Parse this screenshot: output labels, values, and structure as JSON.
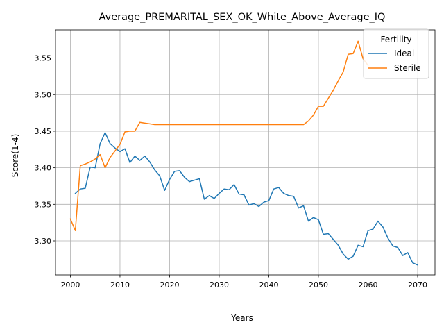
{
  "chart_data": {
    "type": "line",
    "title": "Average_PREMARITAL_SEX_OK_White_Above_Average_IQ",
    "xlabel": "Years",
    "ylabel": "Score(1-4)",
    "xlim": [
      1997,
      2073.5
    ],
    "ylim": [
      3.2535,
      3.5885
    ],
    "x_ticks": [
      "2000",
      "2010",
      "2020",
      "2030",
      "2040",
      "2050",
      "2060",
      "2070"
    ],
    "y_ticks": [
      "3.30",
      "3.35",
      "3.40",
      "3.45",
      "3.50",
      "3.55"
    ],
    "grid": true,
    "legend": {
      "title": "Fertility",
      "placement": "top-right"
    },
    "series": [
      {
        "name": "Ideal",
        "color": "#1f77b4",
        "x": [
          2001,
          2002,
          2003,
          2004,
          2005,
          2006,
          2007,
          2008,
          2009,
          2010,
          2011,
          2012,
          2013,
          2014,
          2015,
          2016,
          2017,
          2018,
          2019,
          2020,
          2021,
          2022,
          2023,
          2024,
          2025,
          2026,
          2027,
          2028,
          2029,
          2030,
          2031,
          2032,
          2033,
          2034,
          2035,
          2036,
          2037,
          2038,
          2039,
          2040,
          2041,
          2042,
          2043,
          2044,
          2045,
          2046,
          2047,
          2048,
          2049,
          2050,
          2051,
          2052,
          2053,
          2054,
          2055,
          2056,
          2057,
          2058,
          2059,
          2060,
          2061,
          2062,
          2063,
          2064,
          2065,
          2066,
          2067,
          2068,
          2069,
          2070
        ],
        "values": [
          3.365,
          3.371,
          3.372,
          3.401,
          3.4,
          3.433,
          3.448,
          3.433,
          3.427,
          3.422,
          3.426,
          3.407,
          3.416,
          3.41,
          3.416,
          3.408,
          3.397,
          3.389,
          3.369,
          3.384,
          3.395,
          3.396,
          3.387,
          3.381,
          3.383,
          3.385,
          3.357,
          3.362,
          3.358,
          3.365,
          3.371,
          3.37,
          3.377,
          3.364,
          3.363,
          3.349,
          3.351,
          3.347,
          3.353,
          3.355,
          3.371,
          3.373,
          3.365,
          3.362,
          3.361,
          3.345,
          3.348,
          3.327,
          3.332,
          3.329,
          3.309,
          3.31,
          3.302,
          3.294,
          3.282,
          3.275,
          3.279,
          3.294,
          3.292,
          3.314,
          3.316,
          3.327,
          3.319,
          3.304,
          3.293,
          3.291,
          3.28,
          3.284,
          3.27,
          3.267
        ]
      },
      {
        "name": "Sterile",
        "color": "#ff7f0e",
        "x": [
          2000,
          2001,
          2002,
          2003,
          2004,
          2005,
          2006,
          2007,
          2008,
          2009,
          2010,
          2011,
          2012,
          2013,
          2014,
          2015,
          2016,
          2017,
          2018,
          2019,
          2020,
          2025,
          2030,
          2035,
          2040,
          2045,
          2047,
          2048,
          2049,
          2050,
          2051,
          2052,
          2053,
          2054,
          2055,
          2056,
          2057,
          2058,
          2059,
          2060
        ],
        "values": [
          3.33,
          3.314,
          3.403,
          3.405,
          3.408,
          3.412,
          3.418,
          3.4,
          3.414,
          3.423,
          3.432,
          3.449,
          3.45,
          3.45,
          3.462,
          3.461,
          3.46,
          3.459,
          3.459,
          3.459,
          3.459,
          3.459,
          3.459,
          3.459,
          3.459,
          3.459,
          3.459,
          3.464,
          3.472,
          3.484,
          3.484,
          3.495,
          3.506,
          3.519,
          3.531,
          3.555,
          3.556,
          3.573,
          3.549,
          3.54
        ]
      }
    ]
  }
}
